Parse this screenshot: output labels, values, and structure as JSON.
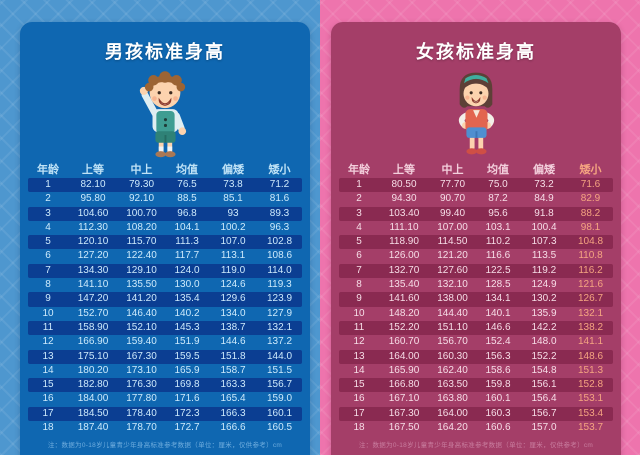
{
  "panels": [
    {
      "title": "男孩标准身高",
      "mascot": "boy-cartoon",
      "footnote": "注：数据为0-18岁儿童青少年身高标准参考数据（单位：厘米，仅供参考）cm",
      "highlight_last_column": false
    },
    {
      "title": "女孩标准身高",
      "mascot": "girl-cartoon",
      "footnote": "注：数据为0-18岁儿童青少年身高标准参考数据（单位：厘米，仅供参考）cm",
      "highlight_last_column": true
    }
  ],
  "colors": {
    "boys_background": "#4e97cf",
    "boys_card": "#0f67b1",
    "boys_row_band": "#0b3e92",
    "girls_background": "#ee74ad",
    "girls_card": "#a43e68",
    "girls_row_band": "#8a2a51",
    "girls_last_column_highlight": "#f5a481"
  },
  "chart_data": [
    {
      "type": "table",
      "title": "男孩标准身高",
      "columns": [
        "年龄",
        "上等",
        "中上",
        "均值",
        "偏矮",
        "矮小"
      ],
      "rows": [
        [
          "1",
          "82.10",
          "79.30",
          "76.5",
          "73.8",
          "71.2"
        ],
        [
          "2",
          "95.80",
          "92.10",
          "88.5",
          "85.1",
          "81.6"
        ],
        [
          "3",
          "104.60",
          "100.70",
          "96.8",
          "93",
          "89.3"
        ],
        [
          "4",
          "112.30",
          "108.20",
          "104.1",
          "100.2",
          "96.3"
        ],
        [
          "5",
          "120.10",
          "115.70",
          "111.3",
          "107.0",
          "102.8"
        ],
        [
          "6",
          "127.20",
          "122.40",
          "117.7",
          "113.1",
          "108.6"
        ],
        [
          "7",
          "134.30",
          "129.10",
          "124.0",
          "119.0",
          "114.0"
        ],
        [
          "8",
          "141.10",
          "135.50",
          "130.0",
          "124.6",
          "119.3"
        ],
        [
          "9",
          "147.20",
          "141.20",
          "135.4",
          "129.6",
          "123.9"
        ],
        [
          "10",
          "152.70",
          "146.40",
          "140.2",
          "134.0",
          "127.9"
        ],
        [
          "11",
          "158.90",
          "152.10",
          "145.3",
          "138.7",
          "132.1"
        ],
        [
          "12",
          "166.90",
          "159.40",
          "151.9",
          "144.6",
          "137.2"
        ],
        [
          "13",
          "175.10",
          "167.30",
          "159.5",
          "151.8",
          "144.0"
        ],
        [
          "14",
          "180.20",
          "173.10",
          "165.9",
          "158.7",
          "151.5"
        ],
        [
          "15",
          "182.80",
          "176.30",
          "169.8",
          "163.3",
          "156.7"
        ],
        [
          "16",
          "184.00",
          "177.80",
          "171.6",
          "165.4",
          "159.0"
        ],
        [
          "17",
          "184.50",
          "178.40",
          "172.3",
          "166.3",
          "160.1"
        ],
        [
          "18",
          "187.40",
          "178.70",
          "172.7",
          "166.6",
          "160.5"
        ]
      ]
    },
    {
      "type": "table",
      "title": "女孩标准身高",
      "columns": [
        "年龄",
        "上等",
        "中上",
        "均值",
        "偏矮",
        "矮小"
      ],
      "rows": [
        [
          "1",
          "80.50",
          "77.70",
          "75.0",
          "73.2",
          "71.6"
        ],
        [
          "2",
          "94.30",
          "90.70",
          "87.2",
          "84.9",
          "82.9"
        ],
        [
          "3",
          "103.40",
          "99.40",
          "95.6",
          "91.8",
          "88.2"
        ],
        [
          "4",
          "111.10",
          "107.00",
          "103.1",
          "100.4",
          "98.1"
        ],
        [
          "5",
          "118.90",
          "114.50",
          "110.2",
          "107.3",
          "104.8"
        ],
        [
          "6",
          "126.00",
          "121.20",
          "116.6",
          "113.5",
          "110.8"
        ],
        [
          "7",
          "132.70",
          "127.60",
          "122.5",
          "119.2",
          "116.2"
        ],
        [
          "8",
          "135.40",
          "132.10",
          "128.5",
          "124.9",
          "121.6"
        ],
        [
          "9",
          "141.60",
          "138.00",
          "134.1",
          "130.2",
          "126.7"
        ],
        [
          "10",
          "148.20",
          "144.40",
          "140.1",
          "135.9",
          "132.1"
        ],
        [
          "11",
          "152.20",
          "151.10",
          "146.6",
          "142.2",
          "138.2"
        ],
        [
          "12",
          "160.70",
          "156.70",
          "152.4",
          "148.0",
          "141.1"
        ],
        [
          "13",
          "164.00",
          "160.30",
          "156.3",
          "152.2",
          "148.6"
        ],
        [
          "14",
          "165.90",
          "162.40",
          "158.6",
          "154.8",
          "151.3"
        ],
        [
          "15",
          "166.80",
          "163.50",
          "159.8",
          "156.1",
          "152.8"
        ],
        [
          "16",
          "167.10",
          "163.80",
          "160.1",
          "156.4",
          "153.1"
        ],
        [
          "17",
          "167.30",
          "164.00",
          "160.3",
          "156.7",
          "153.4"
        ],
        [
          "18",
          "167.50",
          "164.20",
          "160.6",
          "157.0",
          "153.7"
        ]
      ]
    }
  ]
}
